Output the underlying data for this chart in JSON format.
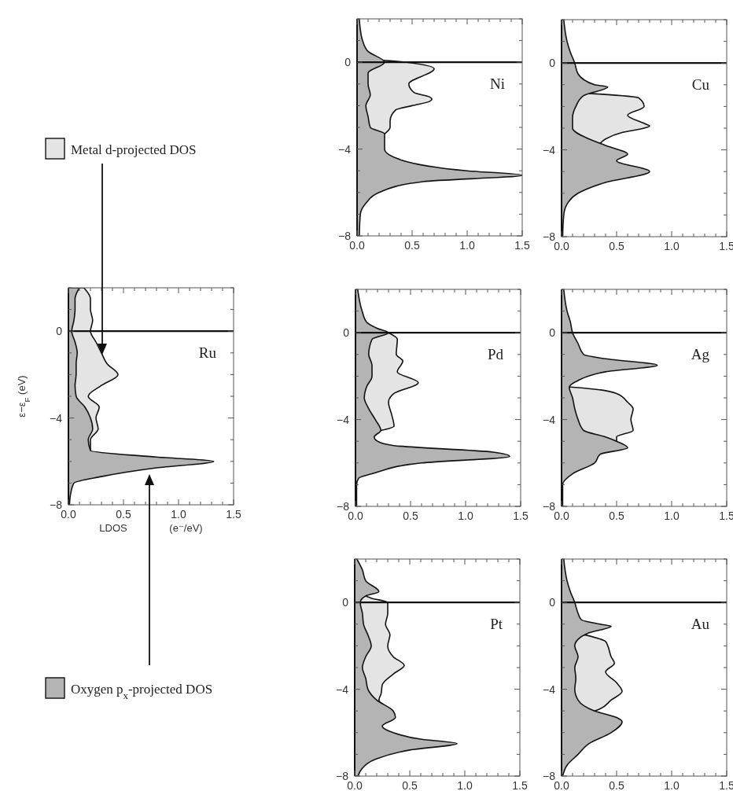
{
  "chart_data": [
    {
      "type": "area",
      "orientation": "horizontal",
      "title": "Ru",
      "xlabel": "LDOS (e⁻/eV)",
      "ylabel": "ε−ε$_{F}$ (eV)",
      "legend": "left",
      "xlim": [
        0,
        1.5
      ],
      "ylim": [
        -8,
        2
      ],
      "xticks": [
        {
          "value": 0,
          "label": "0.0"
        },
        {
          "value": 0.1,
          "label": null
        },
        {
          "value": 0.2,
          "label": null
        },
        {
          "value": 0.3,
          "label": null
        },
        {
          "value": 0.4,
          "label": null
        },
        {
          "value": 0.5,
          "label": "0.5"
        },
        {
          "value": 0.6,
          "label": null
        },
        {
          "value": 0.7,
          "label": null
        },
        {
          "value": 0.8,
          "label": null
        },
        {
          "value": 0.9,
          "label": null
        },
        {
          "value": 1,
          "label": "1.0"
        },
        {
          "value": 1.1,
          "label": null
        },
        {
          "value": 1.2,
          "label": null
        },
        {
          "value": 1.3,
          "label": null
        },
        {
          "value": 1.4,
          "label": null
        },
        {
          "value": 1.5,
          "label": "1.5"
        }
      ],
      "yticks": [
        -8,
        {
          "value": -7,
          "label": null
        },
        {
          "value": -6,
          "label": null
        },
        {
          "value": -5,
          "label": null
        },
        -4,
        {
          "value": -3,
          "label": null
        },
        {
          "value": -2,
          "label": null
        },
        {
          "value": -1,
          "label": null
        },
        0,
        {
          "value": 1,
          "label": null
        },
        {
          "value": 2,
          "label": null
        }
      ],
      "ref_lines": [
        {
          "axis": "y",
          "value": 0
        }
      ],
      "series": [
        {
          "name": "Metal d-projected DOS",
          "color": "#e4e4e4",
          "x": [
            2,
            1.5,
            1,
            0.5,
            0,
            -0.5,
            -1,
            -1.5,
            -2,
            -2.5,
            -3,
            -3.5,
            -4,
            -4.5,
            -5,
            -5.5
          ],
          "values": [
            0.14,
            0.2,
            0.2,
            0.22,
            0.2,
            0.25,
            0.3,
            0.35,
            0.45,
            0.3,
            0.18,
            0.28,
            0.25,
            0.27,
            0.2,
            0.2
          ]
        },
        {
          "name": "Oxygen p$_{x}$-projected DOS",
          "color": "#b4b4b4",
          "x": [
            2,
            1.5,
            1,
            0.5,
            0,
            -0.5,
            -1,
            -1.5,
            -2,
            -2.5,
            -3,
            -3.5,
            -4,
            -4.5,
            -5,
            -5.5,
            -5.8,
            -6,
            -6.3,
            -6.7,
            -7,
            -7.5,
            -8
          ],
          "values": [
            0.1,
            0.06,
            0.06,
            0.05,
            0.03,
            0.06,
            0.08,
            0.07,
            0.07,
            0.06,
            0.07,
            0.15,
            0.2,
            0.22,
            0.18,
            0.2,
            0.8,
            1.32,
            0.8,
            0.3,
            0.05,
            0.02,
            0.01
          ]
        }
      ]
    },
    {
      "type": "area",
      "orientation": "horizontal",
      "title": "Ni",
      "xlim": [
        0,
        1.5
      ],
      "ylim": [
        -8,
        2
      ],
      "xticks": [
        {
          "value": 0,
          "label": "0.0"
        },
        {
          "value": 0.1,
          "label": null
        },
        {
          "value": 0.2,
          "label": null
        },
        {
          "value": 0.3,
          "label": null
        },
        {
          "value": 0.4,
          "label": null
        },
        {
          "value": 0.5,
          "label": "0.5"
        },
        {
          "value": 0.6,
          "label": null
        },
        {
          "value": 0.7,
          "label": null
        },
        {
          "value": 0.8,
          "label": null
        },
        {
          "value": 0.9,
          "label": null
        },
        {
          "value": 1,
          "label": "1.0"
        },
        {
          "value": 1.1,
          "label": null
        },
        {
          "value": 1.2,
          "label": null
        },
        {
          "value": 1.3,
          "label": null
        },
        {
          "value": 1.4,
          "label": null
        },
        {
          "value": 1.5,
          "label": "1.5"
        }
      ],
      "yticks": [
        -8,
        {
          "value": -7,
          "label": null
        },
        {
          "value": -6,
          "label": null
        },
        {
          "value": -5,
          "label": null
        },
        -4,
        {
          "value": -3,
          "label": null
        },
        {
          "value": -2,
          "label": null
        },
        {
          "value": -1,
          "label": null
        },
        0,
        {
          "value": 1,
          "label": null
        },
        {
          "value": 2,
          "label": null
        }
      ],
      "ref_lines": [
        {
          "axis": "y",
          "value": 0
        }
      ],
      "series": [
        {
          "color": "#e4e4e4",
          "x": [
            0.1,
            0,
            -0.3,
            -1,
            -1.4,
            -1.6,
            -1.7,
            -1.8,
            -2,
            -2.2,
            -2.7,
            -3,
            -3.3
          ],
          "values": [
            0.22,
            0.45,
            0.7,
            0.47,
            0.52,
            0.66,
            0.68,
            0.66,
            0.5,
            0.35,
            0.3,
            0.3,
            0.25
          ]
        },
        {
          "color": "#b4b4b4",
          "x": [
            2,
            1.5,
            1,
            0.5,
            0,
            -0.5,
            -1,
            -1.5,
            -2,
            -2.5,
            -3,
            -3.3,
            -3.5,
            -4,
            -4.5,
            -5,
            -5.2,
            -5.5,
            -6,
            -6.5,
            -7,
            -8
          ],
          "values": [
            0.02,
            0.03,
            0.05,
            0.1,
            0.25,
            0.1,
            0.1,
            0.12,
            0.08,
            0.1,
            0.12,
            0.25,
            0.25,
            0.25,
            0.4,
            1.0,
            1.5,
            0.6,
            0.2,
            0.08,
            0.03,
            0.02
          ]
        }
      ]
    },
    {
      "type": "area",
      "orientation": "horizontal",
      "title": "Cu",
      "xlim": [
        0,
        1.5
      ],
      "ylim": [
        -8,
        2
      ],
      "xticks": [
        {
          "value": 0,
          "label": "0.0"
        },
        {
          "value": 0.1,
          "label": null
        },
        {
          "value": 0.2,
          "label": null
        },
        {
          "value": 0.3,
          "label": null
        },
        {
          "value": 0.4,
          "label": null
        },
        {
          "value": 0.5,
          "label": "0.5"
        },
        {
          "value": 0.6,
          "label": null
        },
        {
          "value": 0.7,
          "label": null
        },
        {
          "value": 0.8,
          "label": null
        },
        {
          "value": 0.9,
          "label": null
        },
        {
          "value": 1,
          "label": "1.0"
        },
        {
          "value": 1.1,
          "label": null
        },
        {
          "value": 1.2,
          "label": null
        },
        {
          "value": 1.3,
          "label": null
        },
        {
          "value": 1.4,
          "label": null
        },
        {
          "value": 1.5,
          "label": "1.5"
        }
      ],
      "yticks": [
        -8,
        {
          "value": -7,
          "label": null
        },
        {
          "value": -6,
          "label": null
        },
        {
          "value": -5,
          "label": null
        },
        -4,
        {
          "value": -3,
          "label": null
        },
        {
          "value": -2,
          "label": null
        },
        {
          "value": -1,
          "label": null
        },
        0,
        {
          "value": 1,
          "label": null
        },
        {
          "value": 2,
          "label": null
        }
      ],
      "ref_lines": [
        {
          "axis": "y",
          "value": 0
        }
      ],
      "series": [
        {
          "color": "#e4e4e4",
          "x": [
            -1.4,
            -1.6,
            -2,
            -2.4,
            -2.8,
            -2.9,
            -3,
            -3.2,
            -3.5,
            -3.7
          ],
          "values": [
            0.26,
            0.7,
            0.75,
            0.6,
            0.76,
            0.8,
            0.75,
            0.55,
            0.4,
            0.35
          ]
        },
        {
          "color": "#b4b4b4",
          "x": [
            2,
            1,
            0.5,
            0,
            -0.5,
            -1,
            -1.1,
            -1.5,
            -2,
            -2.5,
            -3,
            -3.5,
            -3.8,
            -4.2,
            -4.5,
            -5,
            -5.5,
            -6,
            -6.5,
            -7,
            -8
          ],
          "values": [
            0.02,
            0.05,
            0.08,
            0.12,
            0.15,
            0.3,
            0.42,
            0.2,
            0.13,
            0.1,
            0.1,
            0.25,
            0.4,
            0.6,
            0.5,
            0.8,
            0.4,
            0.15,
            0.05,
            0.02,
            0.01
          ]
        }
      ]
    },
    {
      "type": "area",
      "orientation": "horizontal",
      "title": "Pd",
      "xlim": [
        0,
        1.5
      ],
      "ylim": [
        -8,
        2
      ],
      "xticks": [
        {
          "value": 0,
          "label": "0.0"
        },
        {
          "value": 0.1,
          "label": null
        },
        {
          "value": 0.2,
          "label": null
        },
        {
          "value": 0.3,
          "label": null
        },
        {
          "value": 0.4,
          "label": null
        },
        {
          "value": 0.5,
          "label": "0.5"
        },
        {
          "value": 0.6,
          "label": null
        },
        {
          "value": 0.7,
          "label": null
        },
        {
          "value": 0.8,
          "label": null
        },
        {
          "value": 0.9,
          "label": null
        },
        {
          "value": 1,
          "label": "1.0"
        },
        {
          "value": 1.1,
          "label": null
        },
        {
          "value": 1.2,
          "label": null
        },
        {
          "value": 1.3,
          "label": null
        },
        {
          "value": 1.4,
          "label": null
        },
        {
          "value": 1.5,
          "label": "1.5"
        }
      ],
      "yticks": [
        -8,
        {
          "value": -7,
          "label": null
        },
        {
          "value": -6,
          "label": null
        },
        {
          "value": -5,
          "label": null
        },
        -4,
        {
          "value": -3,
          "label": null
        },
        {
          "value": -2,
          "label": null
        },
        {
          "value": -1,
          "label": null
        },
        0,
        {
          "value": 1,
          "label": null
        },
        {
          "value": 2,
          "label": null
        }
      ],
      "ref_lines": [
        {
          "axis": "y",
          "value": 0
        }
      ],
      "series": [
        {
          "color": "#e4e4e4",
          "x": [
            0,
            -0.3,
            -1,
            -1.3,
            -1.8,
            -2.3,
            -2.8,
            -3.2,
            -3.8,
            -4.3,
            -4.5
          ],
          "values": [
            0.3,
            0.38,
            0.37,
            0.43,
            0.38,
            0.57,
            0.35,
            0.3,
            0.33,
            0.35,
            0.23
          ]
        },
        {
          "color": "#b4b4b4",
          "x": [
            2,
            1,
            0.5,
            0.2,
            0,
            -0.3,
            -1,
            -1.5,
            -2,
            -2.5,
            -3,
            -3.5,
            -4,
            -4.5,
            -4.8,
            -5,
            -5.2,
            -5.5,
            -5.7,
            -6,
            -6.5,
            -6.7,
            -7,
            -8
          ],
          "values": [
            0.02,
            0.06,
            0.1,
            0.2,
            0.3,
            0.15,
            0.12,
            0.15,
            0.15,
            0.1,
            0.08,
            0.12,
            0.18,
            0.23,
            0.17,
            0.2,
            0.35,
            1.25,
            1.4,
            0.6,
            0.15,
            0.03,
            0.01,
            0.01
          ]
        }
      ]
    },
    {
      "type": "area",
      "orientation": "horizontal",
      "title": "Ag",
      "xlim": [
        0,
        1.5
      ],
      "ylim": [
        -8,
        2
      ],
      "xticks": [
        {
          "value": 0,
          "label": "0.0"
        },
        {
          "value": 0.1,
          "label": null
        },
        {
          "value": 0.2,
          "label": null
        },
        {
          "value": 0.3,
          "label": null
        },
        {
          "value": 0.4,
          "label": null
        },
        {
          "value": 0.5,
          "label": "0.5"
        },
        {
          "value": 0.6,
          "label": null
        },
        {
          "value": 0.7,
          "label": null
        },
        {
          "value": 0.8,
          "label": null
        },
        {
          "value": 0.9,
          "label": null
        },
        {
          "value": 1,
          "label": "1.0"
        },
        {
          "value": 1.1,
          "label": null
        },
        {
          "value": 1.2,
          "label": null
        },
        {
          "value": 1.3,
          "label": null
        },
        {
          "value": 1.4,
          "label": null
        },
        {
          "value": 1.5,
          "label": "1.5"
        }
      ],
      "yticks": [
        -8,
        {
          "value": -7,
          "label": null
        },
        {
          "value": -6,
          "label": null
        },
        {
          "value": -5,
          "label": null
        },
        -4,
        {
          "value": -3,
          "label": null
        },
        {
          "value": -2,
          "label": null
        },
        {
          "value": -1,
          "label": null
        },
        0,
        {
          "value": 1,
          "label": null
        },
        {
          "value": 2,
          "label": null
        }
      ],
      "ref_lines": [
        {
          "axis": "y",
          "value": 0
        }
      ],
      "series": [
        {
          "color": "#e4e4e4",
          "x": [
            -2.5,
            -2.6,
            -2.8,
            -3.2,
            -3.5,
            -4,
            -4.5,
            -4.8,
            -5
          ],
          "values": [
            0.08,
            0.3,
            0.5,
            0.6,
            0.65,
            0.63,
            0.65,
            0.5,
            0.5
          ]
        },
        {
          "color": "#b4b4b4",
          "x": [
            2,
            1,
            0.5,
            0,
            -0.5,
            -1,
            -1.2,
            -1.5,
            -1.8,
            -2.2,
            -2.5,
            -3,
            -3.5,
            -4,
            -4.5,
            -4.8,
            -5,
            -5.3,
            -5.6,
            -6,
            -6.5,
            -7,
            -8
          ],
          "values": [
            0.02,
            0.05,
            0.08,
            0.1,
            0.15,
            0.2,
            0.4,
            0.87,
            0.4,
            0.15,
            0.07,
            0.1,
            0.12,
            0.15,
            0.2,
            0.4,
            0.5,
            0.6,
            0.35,
            0.3,
            0.1,
            0.01,
            0.01
          ]
        }
      ]
    },
    {
      "type": "area",
      "orientation": "horizontal",
      "title": "Pt",
      "xlim": [
        0,
        1.5
      ],
      "ylim": [
        -8,
        2
      ],
      "xticks": [
        {
          "value": 0,
          "label": "0.0"
        },
        {
          "value": 0.1,
          "label": null
        },
        {
          "value": 0.2,
          "label": null
        },
        {
          "value": 0.3,
          "label": null
        },
        {
          "value": 0.4,
          "label": null
        },
        {
          "value": 0.5,
          "label": "0.5"
        },
        {
          "value": 0.6,
          "label": null
        },
        {
          "value": 0.7,
          "label": null
        },
        {
          "value": 0.8,
          "label": null
        },
        {
          "value": 0.9,
          "label": null
        },
        {
          "value": 1,
          "label": "1.0"
        },
        {
          "value": 1.1,
          "label": null
        },
        {
          "value": 1.2,
          "label": null
        },
        {
          "value": 1.3,
          "label": null
        },
        {
          "value": 1.4,
          "label": null
        },
        {
          "value": 1.5,
          "label": "1.5"
        }
      ],
      "yticks": [
        -8,
        {
          "value": -7,
          "label": null
        },
        {
          "value": -6,
          "label": null
        },
        {
          "value": -5,
          "label": null
        },
        -4,
        {
          "value": -3,
          "label": null
        },
        {
          "value": -2,
          "label": null
        },
        {
          "value": -1,
          "label": null
        },
        0,
        {
          "value": 1,
          "label": null
        },
        {
          "value": 2,
          "label": null
        }
      ],
      "ref_lines": [
        {
          "axis": "y",
          "value": 0
        }
      ],
      "series": [
        {
          "color": "#e4e4e4",
          "x": [
            0.3,
            0.2,
            0,
            -0.5,
            -1,
            -1.5,
            -2,
            -2.5,
            -2.9,
            -3.3,
            -3.8,
            -4.2,
            -4.5,
            -4.7
          ],
          "values": [
            0.1,
            0.15,
            0.3,
            0.3,
            0.28,
            0.32,
            0.3,
            0.35,
            0.45,
            0.35,
            0.25,
            0.24,
            0.22,
            0.26
          ]
        },
        {
          "color": "#b4b4b4",
          "x": [
            2,
            1.5,
            1,
            0.5,
            0.3,
            0,
            -0.5,
            -1,
            -1.5,
            -2,
            -2.5,
            -3,
            -3.5,
            -4,
            -4.5,
            -5,
            -5.3,
            -5.7,
            -6,
            -6.3,
            -6.5,
            -6.8,
            -7.2,
            -7.7,
            -8
          ],
          "values": [
            0.02,
            0.07,
            0.1,
            0.22,
            0.1,
            0.05,
            0.07,
            0.08,
            0.12,
            0.15,
            0.1,
            0.07,
            0.1,
            0.12,
            0.2,
            0.35,
            0.37,
            0.25,
            0.35,
            0.6,
            0.93,
            0.5,
            0.2,
            0.06,
            0.03
          ]
        }
      ]
    },
    {
      "type": "area",
      "orientation": "horizontal",
      "title": "Au",
      "xlim": [
        0,
        1.5
      ],
      "ylim": [
        -8,
        2
      ],
      "xticks": [
        {
          "value": 0,
          "label": "0.0"
        },
        {
          "value": 0.1,
          "label": null
        },
        {
          "value": 0.2,
          "label": null
        },
        {
          "value": 0.3,
          "label": null
        },
        {
          "value": 0.4,
          "label": null
        },
        {
          "value": 0.5,
          "label": "0.5"
        },
        {
          "value": 0.6,
          "label": null
        },
        {
          "value": 0.7,
          "label": null
        },
        {
          "value": 0.8,
          "label": null
        },
        {
          "value": 0.9,
          "label": null
        },
        {
          "value": 1,
          "label": "1.0"
        },
        {
          "value": 1.1,
          "label": null
        },
        {
          "value": 1.2,
          "label": null
        },
        {
          "value": 1.3,
          "label": null
        },
        {
          "value": 1.4,
          "label": null
        },
        {
          "value": 1.5,
          "label": "1.5"
        }
      ],
      "yticks": [
        -8,
        {
          "value": -7,
          "label": null
        },
        {
          "value": -6,
          "label": null
        },
        {
          "value": -5,
          "label": null
        },
        -4,
        {
          "value": -3,
          "label": null
        },
        {
          "value": -2,
          "label": null
        },
        {
          "value": -1,
          "label": null
        },
        0,
        {
          "value": 1,
          "label": null
        },
        {
          "value": 2,
          "label": null
        }
      ],
      "ref_lines": [
        {
          "axis": "y",
          "value": 0
        }
      ],
      "series": [
        {
          "color": "#e4e4e4",
          "x": [
            -1.5,
            -1.8,
            -2,
            -2.5,
            -2.8,
            -3.2,
            -3.7,
            -4.1,
            -4.5,
            -4.9,
            -5
          ],
          "values": [
            0.22,
            0.4,
            0.42,
            0.45,
            0.48,
            0.4,
            0.5,
            0.55,
            0.45,
            0.35,
            0.3
          ]
        },
        {
          "color": "#b4b4b4",
          "x": [
            2,
            1,
            0.5,
            0,
            -0.5,
            -0.8,
            -1,
            -1.1,
            -1.4,
            -1.7,
            -2,
            -2.5,
            -3,
            -3.5,
            -4,
            -4.5,
            -5,
            -5.3,
            -5.5,
            -6,
            -6.5,
            -7,
            -7.5,
            -8
          ],
          "values": [
            0.02,
            0.05,
            0.08,
            0.12,
            0.15,
            0.18,
            0.35,
            0.45,
            0.25,
            0.15,
            0.12,
            0.15,
            0.12,
            0.13,
            0.12,
            0.15,
            0.3,
            0.5,
            0.55,
            0.45,
            0.25,
            0.15,
            0.05,
            0.01
          ]
        }
      ]
    }
  ]
}
